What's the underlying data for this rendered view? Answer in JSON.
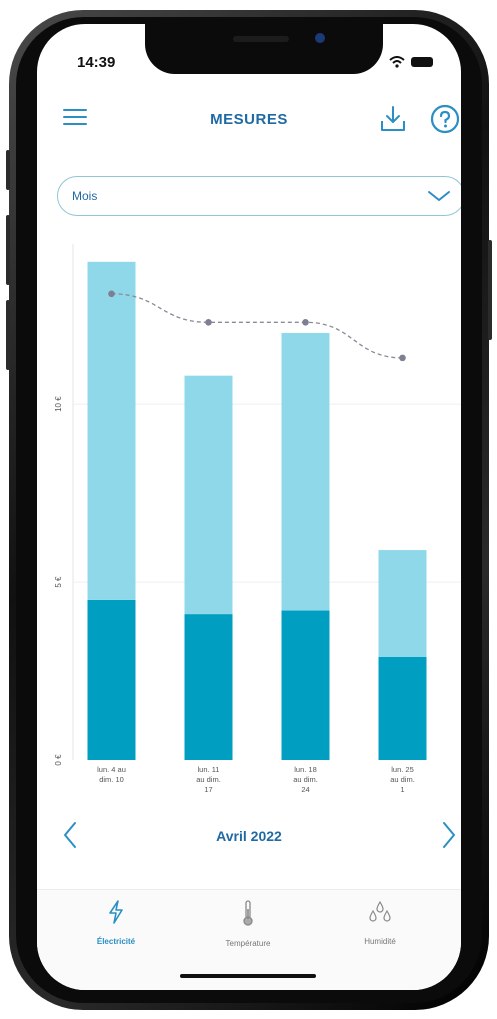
{
  "status_bar": {
    "time": "14:39"
  },
  "header": {
    "title": "MESURES",
    "menu_icon": "menu-icon",
    "download_icon": "download-icon",
    "help_icon": "help-icon"
  },
  "period_select": {
    "value": "Mois"
  },
  "chart_data": {
    "type": "bar",
    "title": "",
    "xlabel": "",
    "ylabel": "",
    "ylim": [
      0,
      14.5
    ],
    "y_ticks": [
      "0 €",
      "5 €",
      "10 €"
    ],
    "y_tick_values": [
      0,
      5,
      10
    ],
    "categories": [
      [
        "lun. 4 au",
        "dim. 10"
      ],
      [
        "lun. 11",
        "au dim.",
        "17"
      ],
      [
        "lun. 18",
        "au dim.",
        "24"
      ],
      [
        "lun. 25",
        "au dim.",
        "1"
      ]
    ],
    "series": [
      {
        "name": "",
        "stack": "total",
        "values": [
          4.5,
          4.1,
          4.2,
          2.9
        ],
        "color": "#009fc2"
      },
      {
        "name": "",
        "stack": "total",
        "values": [
          9.5,
          6.7,
          7.8,
          3.0
        ],
        "color": "#8fd8ea"
      }
    ],
    "trend": {
      "type": "line",
      "style": "dashed",
      "values": [
        13.1,
        12.3,
        12.3,
        11.3
      ],
      "color": "#8a8a9a"
    },
    "grid": true
  },
  "month_nav": {
    "label": "Avril 2022"
  },
  "tabs": [
    {
      "label": "Électricité",
      "icon": "lightning-icon",
      "active": true
    },
    {
      "label": "Température",
      "icon": "thermometer-icon",
      "active": false
    },
    {
      "label": "Humidité",
      "icon": "droplets-icon",
      "active": false
    }
  ],
  "colors": {
    "accent": "#2b8fc4",
    "bar_dark": "#009fc2",
    "bar_light": "#8fd8ea",
    "title": "#1f6aa3"
  }
}
